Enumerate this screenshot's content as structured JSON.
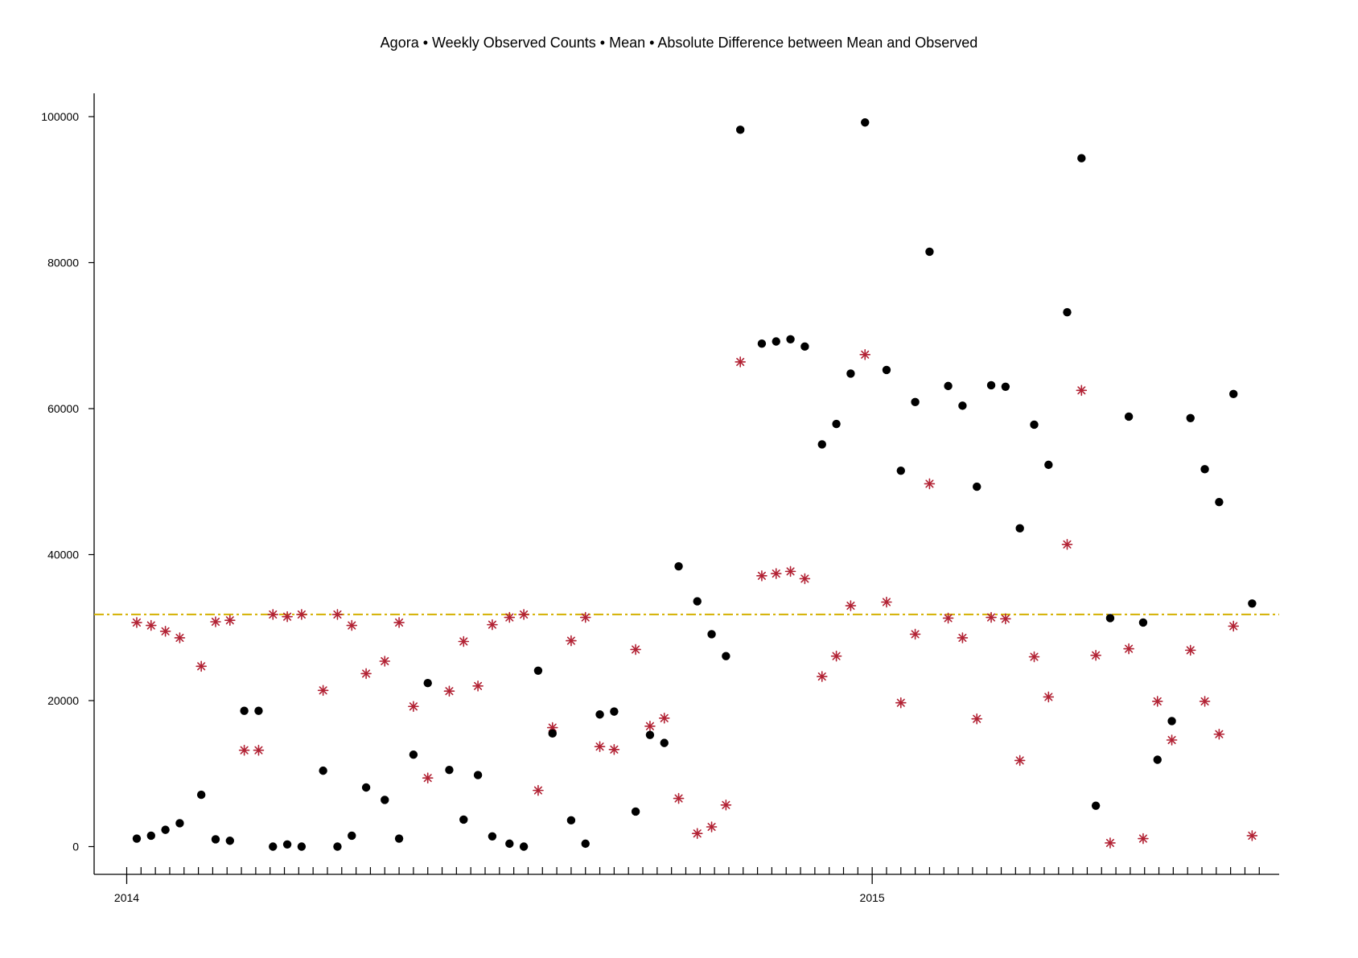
{
  "chart_data": {
    "type": "scatter",
    "title": "Agora • Weekly Observed Counts • Mean • Absolute Difference between Mean and Observed",
    "xlabel": "",
    "ylabel": "",
    "ylim": [
      -4000,
      103000
    ],
    "y_ticks": [
      0,
      20000,
      40000,
      60000,
      80000,
      100000
    ],
    "y_tick_labels": [
      "0",
      "20000",
      "40000",
      "60000",
      "80000",
      "100000"
    ],
    "x_tick_labels": [
      {
        "label": "2014",
        "week": 0
      },
      {
        "label": "2015",
        "week": 52
      }
    ],
    "x_minor_ticks_weeks": [
      0,
      1,
      2,
      3,
      4,
      5,
      6,
      7,
      8,
      9,
      10,
      11,
      12,
      13,
      14,
      15,
      16,
      17,
      18,
      19,
      20,
      21,
      22,
      23,
      24,
      25,
      26,
      27,
      28,
      29,
      30,
      31,
      32,
      33,
      34,
      35,
      36,
      37,
      38,
      39,
      40,
      41,
      42,
      43,
      44,
      45,
      46,
      47,
      48,
      49,
      50,
      51,
      52,
      53,
      54,
      55,
      56,
      57,
      58,
      59,
      60,
      61,
      62,
      63,
      64,
      65,
      66,
      67,
      68,
      69,
      70,
      71,
      72,
      73,
      74,
      75,
      76,
      77,
      78,
      79
    ],
    "grid": false,
    "mean": 31800,
    "colors": {
      "observed": "#000000",
      "difference": "#b22234",
      "mean_line": "#d4b000"
    },
    "series": [
      {
        "marker": "dot",
        "points": [
          [
            0.7,
            1100
          ],
          [
            1.7,
            1500
          ],
          [
            2.7,
            2300
          ],
          [
            3.7,
            3200
          ],
          [
            5.2,
            7100
          ],
          [
            6.2,
            1000
          ],
          [
            7.2,
            800
          ],
          [
            8.2,
            18600
          ],
          [
            9.2,
            18600
          ],
          [
            10.2,
            0
          ],
          [
            11.2,
            300
          ],
          [
            12.2,
            0
          ],
          [
            13.7,
            10400
          ],
          [
            14.7,
            0
          ],
          [
            15.7,
            1500
          ],
          [
            16.7,
            8100
          ],
          [
            18.0,
            6400
          ],
          [
            19.0,
            1100
          ],
          [
            20.0,
            12600
          ],
          [
            21.0,
            22400
          ],
          [
            22.5,
            10500
          ],
          [
            23.5,
            3700
          ],
          [
            24.5,
            9800
          ],
          [
            25.5,
            1400
          ],
          [
            26.7,
            400
          ],
          [
            27.7,
            0
          ],
          [
            28.7,
            24100
          ],
          [
            29.7,
            15500
          ],
          [
            31.0,
            3600
          ],
          [
            32.0,
            400
          ],
          [
            33.0,
            18100
          ],
          [
            34.0,
            18500
          ],
          [
            35.5,
            4800
          ],
          [
            36.5,
            15300
          ],
          [
            37.5,
            14200
          ],
          [
            38.5,
            38400
          ],
          [
            39.8,
            33600
          ],
          [
            40.8,
            29100
          ],
          [
            41.8,
            26100
          ],
          [
            42.8,
            98200
          ],
          [
            44.3,
            68900
          ],
          [
            45.3,
            69200
          ],
          [
            46.3,
            69500
          ],
          [
            47.3,
            68500
          ],
          [
            48.5,
            55100
          ],
          [
            49.5,
            57900
          ],
          [
            50.5,
            64800
          ],
          [
            51.5,
            99200
          ],
          [
            53.0,
            65300
          ],
          [
            54.0,
            51500
          ],
          [
            55.0,
            60900
          ],
          [
            56.0,
            81500
          ],
          [
            57.3,
            63100
          ],
          [
            58.3,
            60400
          ],
          [
            59.3,
            49300
          ],
          [
            60.3,
            63200
          ],
          [
            61.3,
            63000
          ],
          [
            62.3,
            43600
          ],
          [
            63.3,
            57800
          ],
          [
            64.3,
            52300
          ],
          [
            65.6,
            73200
          ],
          [
            66.6,
            94300
          ],
          [
            67.6,
            5600
          ],
          [
            68.6,
            31300
          ],
          [
            69.9,
            58900
          ],
          [
            70.9,
            30700
          ],
          [
            71.9,
            11900
          ],
          [
            72.9,
            17200
          ],
          [
            74.2,
            58700
          ],
          [
            75.2,
            51700
          ],
          [
            76.2,
            47200
          ],
          [
            77.2,
            62000
          ],
          [
            78.5,
            33300
          ]
        ]
      },
      {
        "marker": "asterisk",
        "points": [
          [
            0.7,
            30700
          ],
          [
            1.7,
            30300
          ],
          [
            2.7,
            29500
          ],
          [
            3.7,
            28600
          ],
          [
            5.2,
            24700
          ],
          [
            6.2,
            30800
          ],
          [
            7.2,
            31000
          ],
          [
            8.2,
            13200
          ],
          [
            9.2,
            13200
          ],
          [
            10.2,
            31800
          ],
          [
            11.2,
            31500
          ],
          [
            12.2,
            31800
          ],
          [
            13.7,
            21400
          ],
          [
            14.7,
            31800
          ],
          [
            15.7,
            30300
          ],
          [
            16.7,
            23700
          ],
          [
            18.0,
            25400
          ],
          [
            19.0,
            30700
          ],
          [
            20.0,
            19200
          ],
          [
            21.0,
            9400
          ],
          [
            22.5,
            21300
          ],
          [
            23.5,
            28100
          ],
          [
            24.5,
            22000
          ],
          [
            25.5,
            30400
          ],
          [
            26.7,
            31400
          ],
          [
            27.7,
            31800
          ],
          [
            28.7,
            7700
          ],
          [
            29.7,
            16300
          ],
          [
            31.0,
            28200
          ],
          [
            32.0,
            31400
          ],
          [
            33.0,
            13700
          ],
          [
            34.0,
            13300
          ],
          [
            35.5,
            27000
          ],
          [
            36.5,
            16500
          ],
          [
            37.5,
            17600
          ],
          [
            38.5,
            6600
          ],
          [
            39.8,
            1800
          ],
          [
            40.8,
            2700
          ],
          [
            41.8,
            5700
          ],
          [
            42.8,
            66400
          ],
          [
            44.3,
            37100
          ],
          [
            45.3,
            37400
          ],
          [
            46.3,
            37700
          ],
          [
            47.3,
            36700
          ],
          [
            48.5,
            23300
          ],
          [
            49.5,
            26100
          ],
          [
            50.5,
            33000
          ],
          [
            51.5,
            67400
          ],
          [
            53.0,
            33500
          ],
          [
            54.0,
            19700
          ],
          [
            55.0,
            29100
          ],
          [
            56.0,
            49700
          ],
          [
            57.3,
            31300
          ],
          [
            58.3,
            28600
          ],
          [
            59.3,
            17500
          ],
          [
            60.3,
            31400
          ],
          [
            61.3,
            31200
          ],
          [
            62.3,
            11800
          ],
          [
            63.3,
            26000
          ],
          [
            64.3,
            20500
          ],
          [
            65.6,
            41400
          ],
          [
            66.6,
            62500
          ],
          [
            67.6,
            26200
          ],
          [
            68.6,
            500
          ],
          [
            69.9,
            27100
          ],
          [
            70.9,
            1100
          ],
          [
            71.9,
            19900
          ],
          [
            72.9,
            14600
          ],
          [
            74.2,
            26900
          ],
          [
            75.2,
            19900
          ],
          [
            76.2,
            15400
          ],
          [
            77.2,
            30200
          ],
          [
            78.5,
            1500
          ]
        ]
      }
    ]
  }
}
